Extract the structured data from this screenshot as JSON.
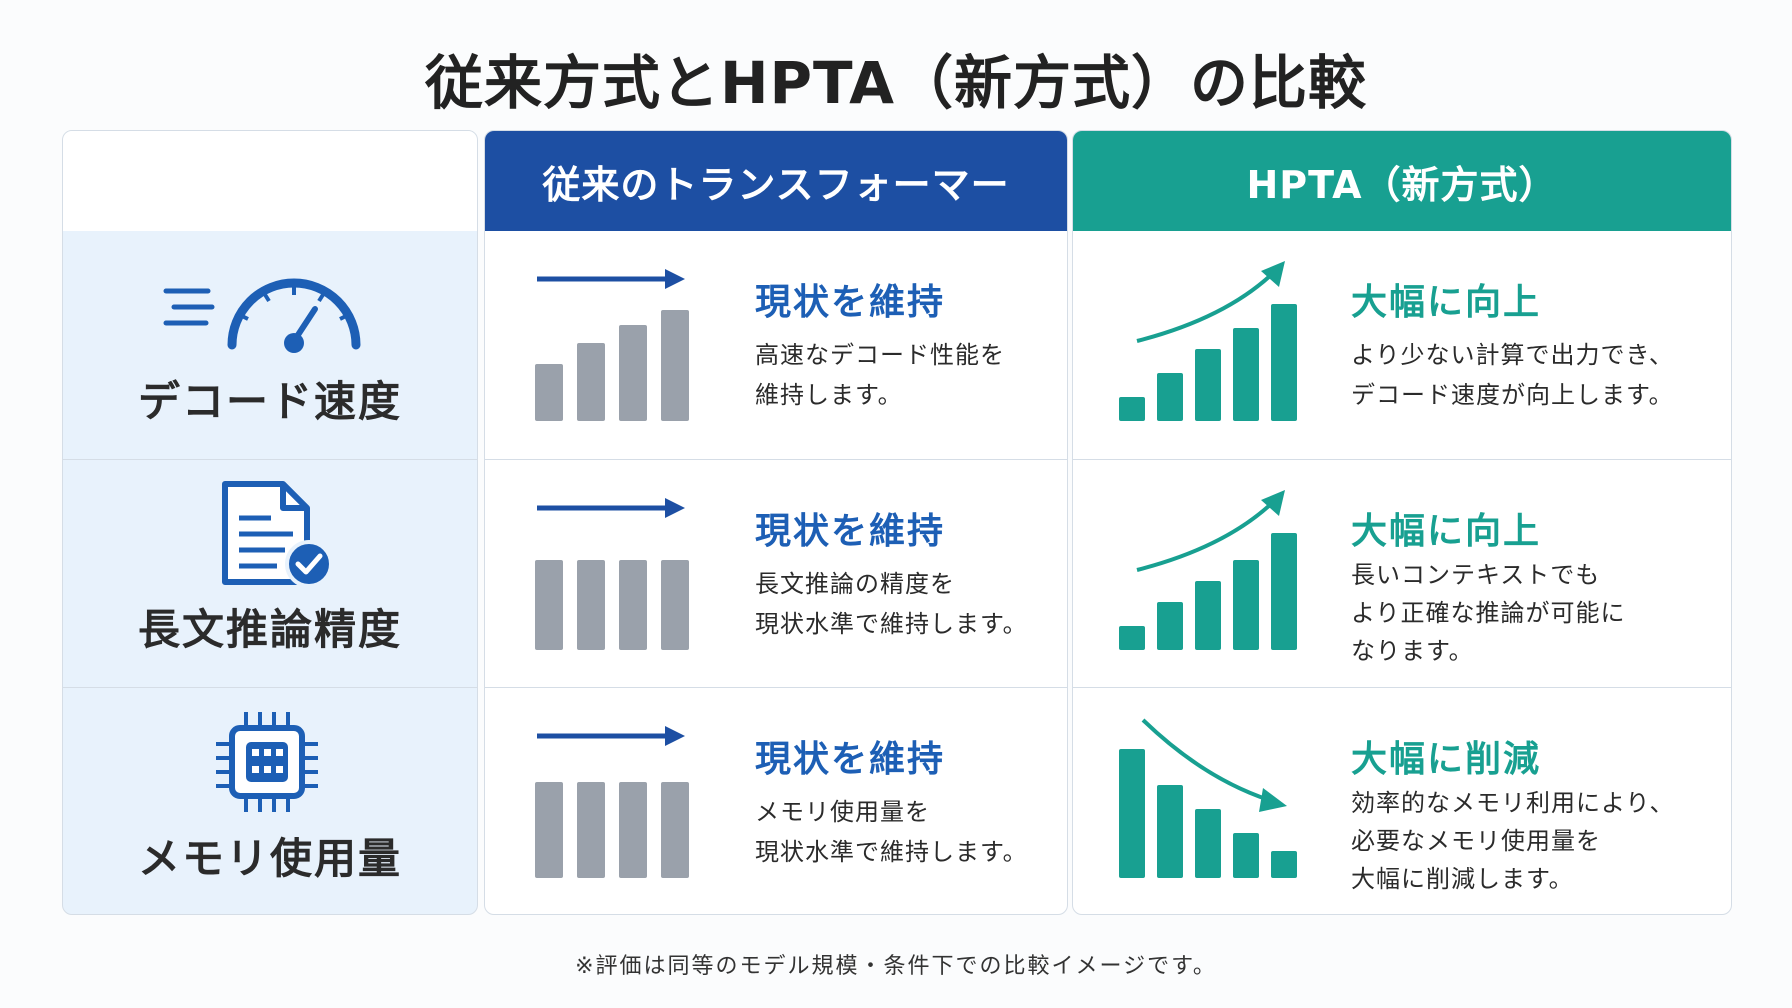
{
  "title": "従来方式とHPTA（新方式）の比較",
  "columns": {
    "old": "従来のトランスフォーマー",
    "new": "HPTA（新方式）"
  },
  "rows": [
    {
      "label": "デコード速度",
      "icon": "speedometer-icon",
      "old": {
        "status": "現状を維持",
        "desc": "高速なデコード性能を\n維持します。",
        "trend": "flat-rising",
        "bars": [
          0.38,
          0.52,
          0.64,
          0.74
        ]
      },
      "new": {
        "status": "大幅に向上",
        "desc": "より少ない計算で出力でき、\nデコード速度が向上します。",
        "trend": "increase",
        "bars": [
          0.16,
          0.32,
          0.48,
          0.62,
          0.78
        ]
      }
    },
    {
      "label": "長文推論精度",
      "icon": "document-check-icon",
      "old": {
        "status": "現状を維持",
        "desc": "長文推論の精度を\n現状水準で維持します。",
        "trend": "flat",
        "bars": [
          0.6,
          0.6,
          0.6,
          0.6
        ]
      },
      "new": {
        "status": "大幅に向上",
        "desc": "長いコンテキストでも\nより正確な推論が可能に\nなります。",
        "trend": "increase",
        "bars": [
          0.16,
          0.32,
          0.46,
          0.6,
          0.78
        ]
      }
    },
    {
      "label": "メモリ使用量",
      "icon": "chip-icon",
      "old": {
        "status": "現状を維持",
        "desc": "メモリ使用量を\n現状水準で維持します。",
        "trend": "flat",
        "bars": [
          0.64,
          0.64,
          0.64,
          0.64
        ]
      },
      "new": {
        "status": "大幅に削減",
        "desc": "効率的なメモリ利用により、\n必要なメモリ使用量を\n大幅に削減します。",
        "trend": "decrease",
        "bars": [
          0.86,
          0.62,
          0.46,
          0.3,
          0.18
        ]
      }
    }
  ],
  "footnote": "※評価は同等のモデル規模・条件下での比較イメージです。",
  "colors": {
    "blue": "#1d4fa3",
    "teal": "#18a091",
    "gray": "#9aa1ab",
    "label_bg": "#e8f2fc"
  }
}
